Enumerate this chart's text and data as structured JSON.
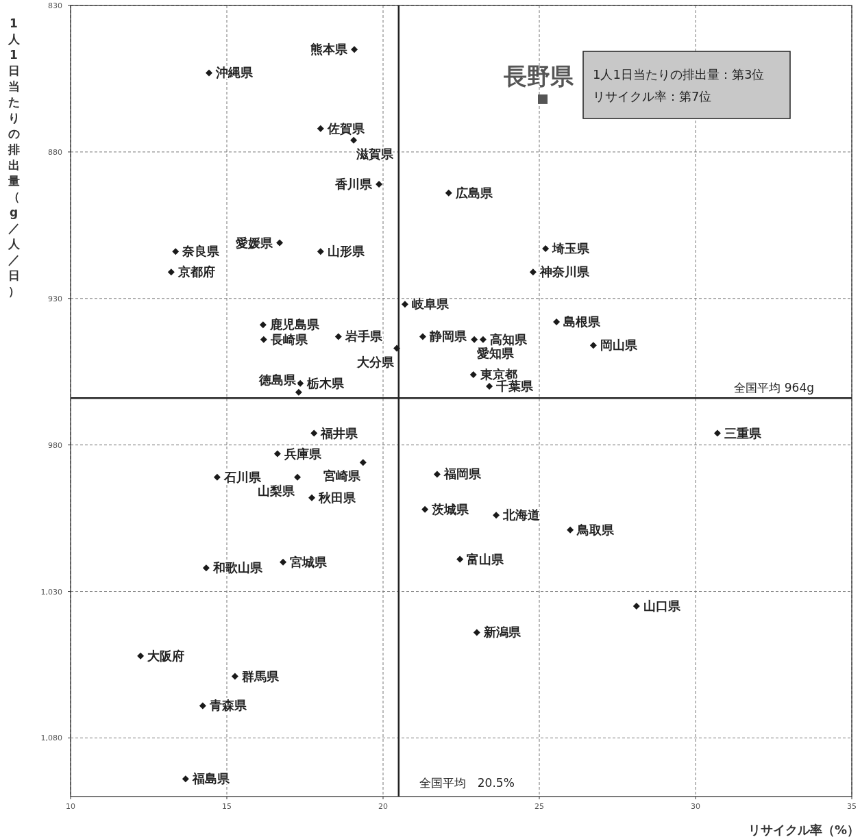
{
  "chart_data": {
    "type": "scatter",
    "xlabel": "リサイクル率（%）",
    "ylabel": "1人1日当たりの排出量（g／人／日）",
    "xlim": [
      10,
      35
    ],
    "xticks": [
      10,
      15,
      20,
      25,
      30,
      35
    ],
    "ylim": [
      1100,
      830
    ],
    "yticks": [
      830,
      880,
      930,
      980,
      {
        "value": 1030,
        "label": "1,030"
      },
      {
        "value": 1080,
        "label": "1,080"
      }
    ],
    "grid": true,
    "marker": "diamond",
    "series": [
      {
        "color": "#1a1a1a",
        "x": [
          19.08,
          14.43,
          18.0,
          19.06,
          19.87,
          22.1,
          16.69,
          18.0,
          13.36,
          13.22,
          25.2,
          24.8,
          20.7,
          16.16,
          16.18,
          18.57,
          21.27,
          23.2,
          22.92,
          25.55,
          26.73,
          20.44,
          22.89,
          23.4,
          17.35,
          17.3,
          30.7,
          17.79,
          16.62,
          19.36,
          14.69,
          17.26,
          17.72,
          21.73,
          21.34,
          23.62,
          25.99,
          22.46,
          14.34,
          16.8,
          28.11,
          23.0,
          12.24,
          15.26,
          14.23,
          13.68
        ],
        "values": [
          845,
          853,
          872,
          876,
          891,
          894,
          911,
          914,
          914,
          921,
          913,
          921,
          932,
          939,
          944,
          943,
          943,
          944,
          944,
          938,
          946,
          947,
          956,
          960,
          959,
          962,
          976,
          976,
          983,
          986,
          991,
          991,
          998,
          990,
          1002,
          1004,
          1009,
          1019,
          1022,
          1020,
          1035,
          1044,
          1052,
          1059,
          1069,
          1094
        ]
      },
      {
        "name": "長野県",
        "color": "#555555",
        "marker": "square",
        "x": [
          25.11
        ],
        "values": [
          862
        ]
      }
    ],
    "ref_lines": [
      {
        "axis": "y",
        "value": 964,
        "label": "全国平均 964g"
      },
      {
        "axis": "x",
        "value": 20.5,
        "label": "全国平均　20.5%"
      }
    ],
    "annotations": [
      {
        "text": "熊本県",
        "x": 19.08,
        "y": 845
      },
      {
        "text": "沖縄県",
        "x": 14.43,
        "y": 853
      },
      {
        "text": "佐賀県",
        "x": 18.0,
        "y": 872
      },
      {
        "text": "滋賀県",
        "x": 19.06,
        "y": 876
      },
      {
        "text": "香川県",
        "x": 19.87,
        "y": 891
      },
      {
        "text": "広島県",
        "x": 22.1,
        "y": 894
      },
      {
        "text": "愛媛県",
        "x": 16.69,
        "y": 911
      },
      {
        "text": "山形県",
        "x": 18.0,
        "y": 914
      },
      {
        "text": "奈良県",
        "x": 13.36,
        "y": 914
      },
      {
        "text": "京都府",
        "x": 13.22,
        "y": 921
      },
      {
        "text": "埼玉県",
        "x": 25.2,
        "y": 913
      },
      {
        "text": "神奈川県",
        "x": 24.8,
        "y": 921
      },
      {
        "text": "岐阜県",
        "x": 20.7,
        "y": 932
      },
      {
        "text": "鹿児島県",
        "x": 16.16,
        "y": 939
      },
      {
        "text": "長崎県",
        "x": 16.18,
        "y": 944
      },
      {
        "text": "岩手県",
        "x": 18.57,
        "y": 943
      },
      {
        "text": "静岡県",
        "x": 21.27,
        "y": 943
      },
      {
        "text": "高知県",
        "x": 23.2,
        "y": 944
      },
      {
        "text": "愛知県",
        "x": 22.92,
        "y": 944
      },
      {
        "text": "島根県",
        "x": 25.55,
        "y": 938
      },
      {
        "text": "岡山県",
        "x": 26.73,
        "y": 946
      },
      {
        "text": "大分県",
        "x": 20.44,
        "y": 947
      },
      {
        "text": "東京都",
        "x": 22.89,
        "y": 956
      },
      {
        "text": "千葉県",
        "x": 23.4,
        "y": 960
      },
      {
        "text": "栃木県",
        "x": 17.35,
        "y": 959
      },
      {
        "text": "徳島県",
        "x": 17.3,
        "y": 962
      },
      {
        "text": "三重県",
        "x": 30.7,
        "y": 976
      },
      {
        "text": "福井県",
        "x": 17.79,
        "y": 976
      },
      {
        "text": "兵庫県",
        "x": 16.62,
        "y": 983
      },
      {
        "text": "宮崎県",
        "x": 19.36,
        "y": 986
      },
      {
        "text": "石川県",
        "x": 14.69,
        "y": 991
      },
      {
        "text": "山梨県",
        "x": 17.26,
        "y": 991
      },
      {
        "text": "秋田県",
        "x": 17.72,
        "y": 998
      },
      {
        "text": "福岡県",
        "x": 21.73,
        "y": 990
      },
      {
        "text": "茨城県",
        "x": 21.34,
        "y": 1002
      },
      {
        "text": "北海道",
        "x": 23.62,
        "y": 1004
      },
      {
        "text": "鳥取県",
        "x": 25.99,
        "y": 1009
      },
      {
        "text": "富山県",
        "x": 22.46,
        "y": 1019
      },
      {
        "text": "和歌山県",
        "x": 14.34,
        "y": 1022
      },
      {
        "text": "宮城県",
        "x": 16.8,
        "y": 1020
      },
      {
        "text": "山口県",
        "x": 28.11,
        "y": 1035
      },
      {
        "text": "新潟県",
        "x": 23.0,
        "y": 1044
      },
      {
        "text": "大阪府",
        "x": 12.24,
        "y": 1052
      },
      {
        "text": "群馬県",
        "x": 15.26,
        "y": 1059
      },
      {
        "text": "青森県",
        "x": 14.23,
        "y": 1069
      },
      {
        "text": "福島県",
        "x": 13.68,
        "y": 1094
      },
      "1人1日当たりの排出量：第3位",
      "リサイクル率：第7位"
    ]
  }
}
